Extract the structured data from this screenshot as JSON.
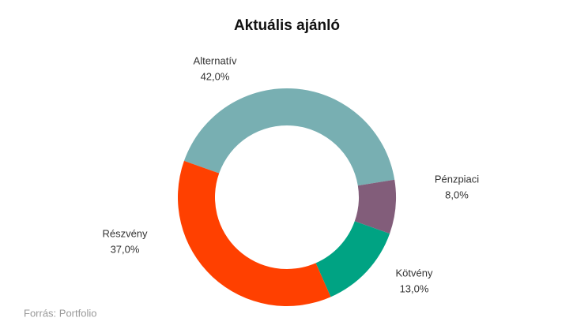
{
  "chart_data": {
    "type": "donut",
    "title": "Aktuális ajánló",
    "categories": [
      "Alternatív",
      "Pénzpiaci",
      "Kötvény",
      "Részvény"
    ],
    "values": [
      42,
      8,
      13,
      37
    ],
    "value_labels": [
      "42,0%",
      "8,0%",
      "13,0%",
      "37,0%"
    ],
    "colors": [
      "#78afb2",
      "#825d7a",
      "#00a383",
      "#ff4000"
    ],
    "source": "Forrás: Portfolio"
  }
}
